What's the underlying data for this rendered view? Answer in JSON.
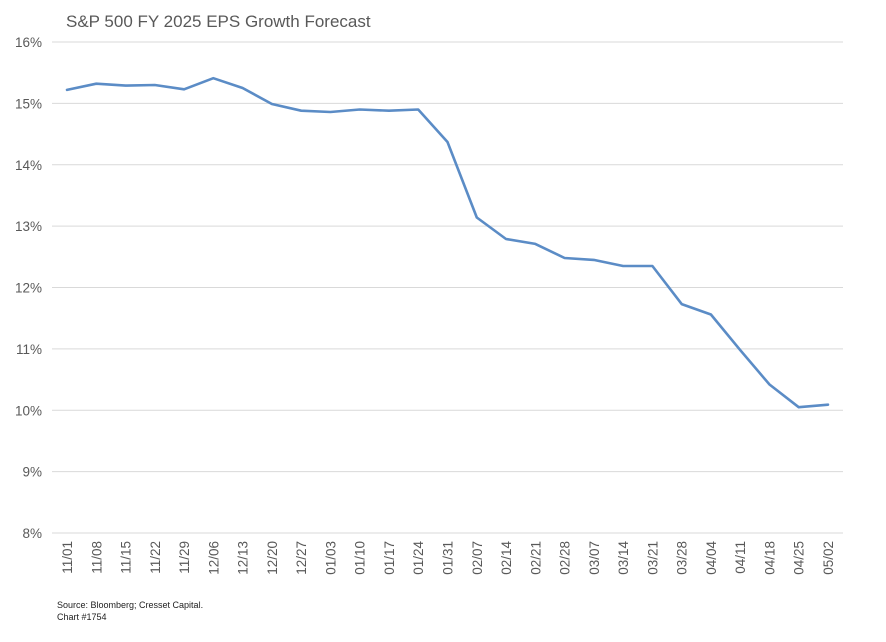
{
  "chart_data": {
    "type": "line",
    "title": "S&P 500 FY 2025 EPS Growth Forecast",
    "xlabel": "",
    "ylabel": "",
    "categories": [
      "11/01",
      "11/08",
      "11/15",
      "11/22",
      "11/29",
      "12/06",
      "12/13",
      "12/20",
      "12/27",
      "01/03",
      "01/10",
      "01/17",
      "01/24",
      "01/31",
      "02/07",
      "02/14",
      "02/21",
      "02/28",
      "03/07",
      "03/14",
      "03/21",
      "03/28",
      "04/04",
      "04/11",
      "04/18",
      "04/25",
      "05/02"
    ],
    "series": [
      {
        "values": [
          15.22,
          15.32,
          15.29,
          15.3,
          15.23,
          15.41,
          15.25,
          14.99,
          14.88,
          14.86,
          14.9,
          14.88,
          14.9,
          14.37,
          13.14,
          12.79,
          12.71,
          12.48,
          12.45,
          12.35,
          12.35,
          11.73,
          11.56,
          10.98,
          10.42,
          10.05,
          10.09
        ],
        "color": "#5b8cc6"
      }
    ],
    "ylim": [
      8,
      16
    ],
    "yticks": [
      8,
      9,
      10,
      11,
      12,
      13,
      14,
      15,
      16
    ],
    "ytick_suffix": "%",
    "grid": "horizontal",
    "legend": "none"
  },
  "footer": {
    "source": "Source: Bloomberg; Cresset Capital.",
    "chart_id": "Chart #1754"
  },
  "colors": {
    "line": "#5b8cc6",
    "grid": "#d9d9d9",
    "text": "#595959"
  }
}
